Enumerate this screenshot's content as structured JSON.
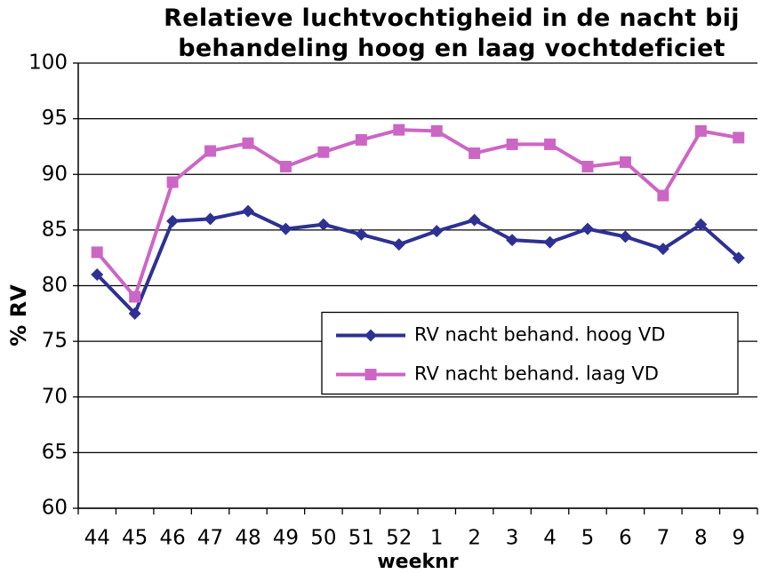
{
  "chart_data": {
    "type": "line",
    "title": "Relatieve luchtvochtigheid in de nacht bij behandeling hoog en laag vochtdeficiet",
    "xlabel": "weeknr",
    "ylabel": "% RV",
    "categories": [
      "44",
      "45",
      "46",
      "47",
      "48",
      "49",
      "50",
      "51",
      "52",
      "1",
      "2",
      "3",
      "4",
      "5",
      "6",
      "7",
      "8",
      "9"
    ],
    "series": [
      {
        "name": "RV nacht behand. hoog VD",
        "color": "#2e3192",
        "marker": "diamond",
        "values": [
          81.0,
          77.5,
          85.8,
          86.0,
          86.7,
          85.1,
          85.5,
          84.6,
          83.7,
          84.9,
          85.9,
          84.1,
          83.9,
          85.1,
          84.4,
          83.3,
          85.5,
          82.5
        ]
      },
      {
        "name": "RV nacht behand. laag VD",
        "color": "#cc66c4",
        "marker": "square",
        "values": [
          83.0,
          79.0,
          89.3,
          92.1,
          92.8,
          90.7,
          92.0,
          93.1,
          94.0,
          93.9,
          91.9,
          92.7,
          92.7,
          90.7,
          91.1,
          88.1,
          93.9,
          93.3
        ]
      }
    ],
    "ylim": [
      60,
      100
    ],
    "yticks": [
      60,
      65,
      70,
      75,
      80,
      85,
      90,
      95,
      100
    ],
    "grid": true,
    "legend": "center right"
  }
}
